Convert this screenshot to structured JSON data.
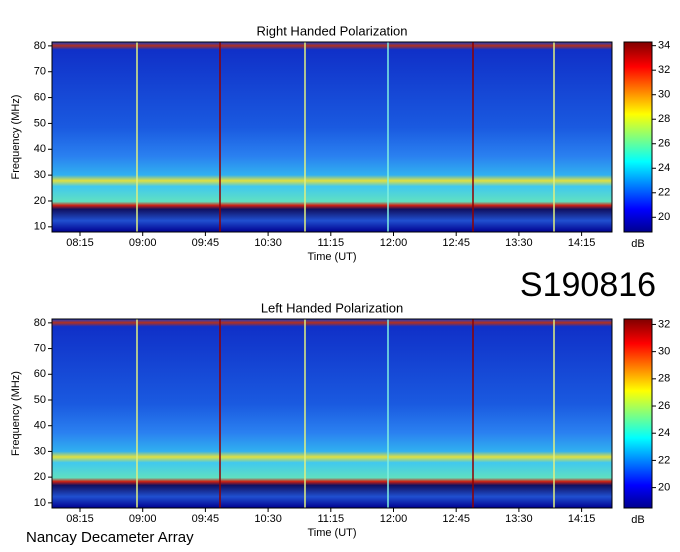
{
  "label": "S190816",
  "footer": "Nancay Decameter Array",
  "chart_data": [
    {
      "type": "heatmap",
      "title": "Right Handed Polarization",
      "x_label": "Time (UT)",
      "y_label": "Frequency (MHz)",
      "colorbar_label": "dB",
      "xticks": [
        "08:15",
        "09:00",
        "09:45",
        "10:30",
        "11:15",
        "12:00",
        "12:45",
        "13:30",
        "14:15"
      ],
      "ylim": [
        8,
        81.5
      ],
      "yticks": [
        10,
        20,
        30,
        40,
        50,
        60,
        70,
        80
      ],
      "clim": [
        18.8,
        34.3
      ],
      "cticks": [
        20,
        22,
        24,
        26,
        28,
        30,
        32,
        34
      ]
    },
    {
      "type": "heatmap",
      "title": "Left Handed Polarization",
      "x_label": "Time (UT)",
      "y_label": "Frequency (MHz)",
      "colorbar_label": "dB",
      "xticks": [
        "08:15",
        "09:00",
        "09:45",
        "10:30",
        "11:15",
        "12:00",
        "12:45",
        "13:30",
        "14:15"
      ],
      "ylim": [
        8,
        81.5
      ],
      "yticks": [
        10,
        20,
        30,
        40,
        50,
        60,
        70,
        80
      ],
      "clim": [
        18.5,
        32.4
      ],
      "cticks": [
        20,
        22,
        24,
        26,
        28,
        30,
        32
      ]
    }
  ]
}
